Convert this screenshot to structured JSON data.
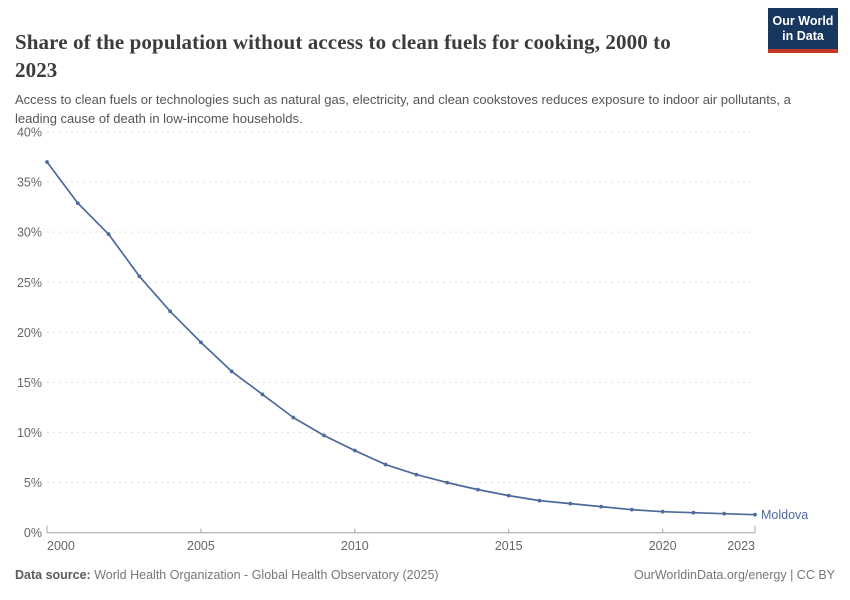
{
  "header": {
    "logo": {
      "line1": "Our World",
      "line2": "in Data"
    }
  },
  "chart_data": {
    "type": "line",
    "title": "Share of the population without access to clean fuels for cooking, 2000 to 2023",
    "subtitle": "Access to clean fuels or technologies such as natural gas, electricity, and clean cookstoves reduces exposure to indoor air pollutants, a leading cause of death in low-income households.",
    "x": [
      2000,
      2001,
      2002,
      2003,
      2004,
      2005,
      2006,
      2007,
      2008,
      2009,
      2010,
      2011,
      2012,
      2013,
      2014,
      2015,
      2016,
      2017,
      2018,
      2019,
      2020,
      2021,
      2022,
      2023
    ],
    "series": [
      {
        "name": "Moldova",
        "color": "#4c6a9c",
        "values": [
          37.0,
          32.9,
          29.8,
          25.6,
          22.1,
          19.0,
          16.1,
          13.8,
          11.5,
          9.7,
          8.2,
          6.8,
          5.8,
          5.0,
          4.3,
          3.7,
          3.2,
          2.9,
          2.6,
          2.3,
          2.1,
          2.0,
          1.9,
          1.8
        ]
      }
    ],
    "xlabel": "",
    "ylabel": "",
    "ylim": [
      0,
      40
    ],
    "ytick_step": 5,
    "ytick_suffix": "%",
    "xticks": [
      2000,
      2005,
      2010,
      2015,
      2020,
      2023
    ],
    "grid": "horizontal-dashed",
    "legend_position": "end-of-line"
  },
  "colors": {
    "line": "#4c6a9c",
    "grid": "#dddddd",
    "axis": "#a5a5a5",
    "tick_label": "#666666",
    "title": "#3c3c3c",
    "subtitle": "#555555",
    "footer": "#777777",
    "logo_bg": "#18375f",
    "logo_accent": "#c0392b"
  },
  "footer": {
    "datasource_label": "Data source:",
    "datasource_value": "World Health Organization - Global Health Observatory (2025)",
    "rights": "OurWorldinData.org/energy | CC BY"
  }
}
